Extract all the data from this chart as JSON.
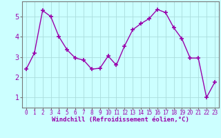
{
  "x": [
    0,
    1,
    2,
    3,
    4,
    5,
    6,
    7,
    8,
    9,
    10,
    11,
    12,
    13,
    14,
    15,
    16,
    17,
    18,
    19,
    20,
    21,
    22,
    23
  ],
  "y": [
    2.4,
    3.2,
    5.3,
    5.0,
    4.0,
    3.35,
    2.95,
    2.85,
    2.4,
    2.45,
    3.05,
    2.6,
    3.55,
    4.35,
    4.65,
    4.9,
    5.35,
    5.2,
    4.45,
    3.9,
    2.95,
    2.95,
    1.0,
    1.75
  ],
  "line_color": "#9900aa",
  "marker": "+",
  "markersize": 4,
  "markeredgewidth": 1.2,
  "linewidth": 1.0,
  "bg_color": "#ccffff",
  "grid_color": "#aadddd",
  "xlabel": "Windchill (Refroidissement éolien,°C)",
  "xlabel_fontsize": 6.5,
  "ylabel_ticks": [
    1,
    2,
    3,
    4,
    5
  ],
  "xlim": [
    -0.5,
    23.5
  ],
  "ylim": [
    0.5,
    5.75
  ],
  "tick_fontsize": 5.5,
  "ytick_fontsize": 7,
  "spine_color": "#777777"
}
